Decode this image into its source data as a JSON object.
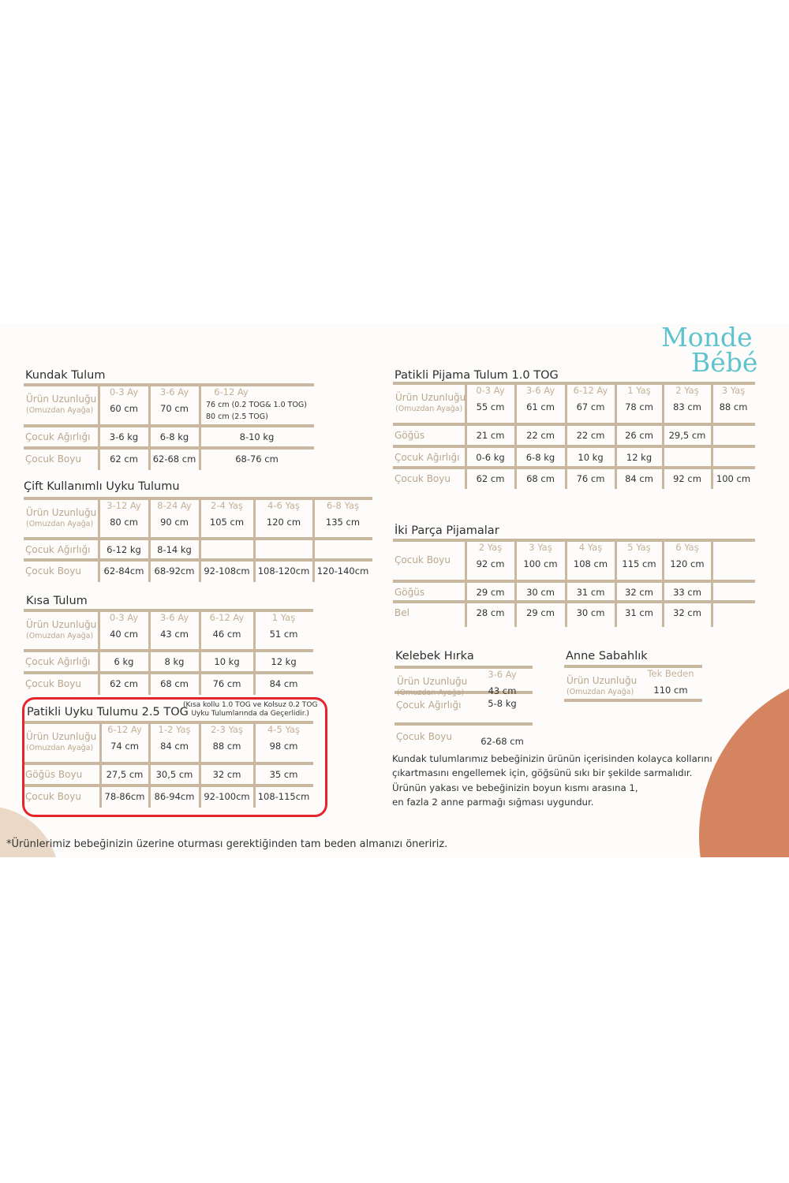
{
  "brand": {
    "logo_line1": "Monde",
    "logo_line2": "Bébé",
    "logo_color": "#5ec3cd"
  },
  "colors": {
    "rule": "#c9b79f",
    "label": "#b9a68c",
    "accent_circle": "#d4845f",
    "beige_circle": "#ead9c6",
    "highlight_box": "#e4262c"
  },
  "tables": {
    "kundak": {
      "title": "Kundak Tulum",
      "header_label": "Ürün Uzunluğu",
      "header_sub": "(Omuzdan Ayağa)",
      "ages": [
        "0-3 Ay",
        "3-6 Ay",
        "6-12 Ay"
      ],
      "lengths": [
        "60 cm",
        "70 cm",
        [
          "76 cm (0.2 TOG& 1.0 TOG)",
          "80 cm (2.5 TOG)"
        ]
      ],
      "rows": [
        {
          "label": "Çocuk Ağırlığı",
          "values": [
            "3-6 kg",
            "6-8 kg",
            "8-10 kg"
          ]
        },
        {
          "label": "Çocuk Boyu",
          "values": [
            "62 cm",
            "62-68 cm",
            "68-76 cm"
          ]
        }
      ]
    },
    "cift": {
      "title": "Çift Kullanımlı Uyku Tulumu",
      "header_label": "Ürün Uzunluğu",
      "header_sub": "(Omuzdan Ayağa)",
      "ages": [
        "3-12 Ay",
        "8-24 Ay",
        "2-4 Yaş",
        "4-6 Yaş",
        "6-8 Yaş"
      ],
      "lengths": [
        "80 cm",
        "90 cm",
        "105  cm",
        "120  cm",
        "135 cm"
      ],
      "rows": [
        {
          "label": "Çocuk Ağırlığı",
          "values": [
            "6-12 kg",
            "8-14 kg",
            "",
            "",
            ""
          ]
        },
        {
          "label": "Çocuk Boyu",
          "values": [
            "62-84cm",
            "68-92cm",
            "92-108cm",
            "108-120cm",
            "120-140cm"
          ]
        }
      ]
    },
    "kisa": {
      "title": "Kısa Tulum",
      "header_label": "Ürün Uzunluğu",
      "header_sub": "(Omuzdan Ayağa)",
      "ages": [
        "0-3 Ay",
        "3-6 Ay",
        "6-12 Ay",
        "1 Yaş"
      ],
      "lengths": [
        "40 cm",
        "43 cm",
        "46 cm",
        "51 cm"
      ],
      "rows": [
        {
          "label": "Çocuk Ağırlığı",
          "values": [
            "6 kg",
            "8 kg",
            "10 kg",
            "12 kg"
          ]
        },
        {
          "label": "Çocuk Boyu",
          "values": [
            "62 cm",
            "68 cm",
            "76 cm",
            "84 cm"
          ]
        }
      ]
    },
    "patikli_uyku": {
      "title": "Patikli Uyku Tulumu 2.5 TOG",
      "note_line1": "(Kısa kollu 1.0 TOG ve Kolsuz 0.2 TOG",
      "note_line2": "Uyku Tulumlarında da Geçerlidir.)",
      "header_label": "Ürün Uzunluğu",
      "header_sub": "(Omuzdan Ayağa)",
      "ages": [
        "6-12 Ay",
        "1-2 Yaş",
        "2-3 Yaş",
        "4-5 Yaş"
      ],
      "lengths": [
        "74 cm",
        "84 cm",
        "88 cm",
        "98 cm"
      ],
      "rows": [
        {
          "label": "Göğüs Boyu",
          "values": [
            "27,5 cm",
            "30,5 cm",
            "32 cm",
            "35 cm"
          ]
        },
        {
          "label": "Çocuk Boyu",
          "values": [
            "78-86cm",
            "86-94cm",
            "92-100cm",
            "108-115cm"
          ]
        }
      ]
    },
    "patikli_pijama": {
      "title": "Patikli Pijama Tulum 1.0 TOG",
      "header_label": "Ürün Uzunluğu",
      "header_sub": "(Omuzdan Ayağa)",
      "ages": [
        "0-3 Ay",
        "3-6 Ay",
        "6-12 Ay",
        "1 Yaş",
        "2 Yaş",
        "3 Yaş"
      ],
      "lengths": [
        "55 cm",
        "61 cm",
        "67 cm",
        "78 cm",
        "83 cm",
        "88 cm"
      ],
      "rows": [
        {
          "label": "Göğüs",
          "values": [
            "21 cm",
            "22 cm",
            "22 cm",
            "26 cm",
            "29,5 cm",
            ""
          ]
        },
        {
          "label": "Çocuk Ağırlığı",
          "values": [
            "0-6 kg",
            "6-8 kg",
            "10 kg",
            "12 kg",
            "",
            ""
          ]
        },
        {
          "label": "Çocuk Boyu",
          "values": [
            "62 cm",
            "68 cm",
            "76 cm",
            "84 cm",
            "92 cm",
            "100 cm"
          ]
        }
      ]
    },
    "iki_parca": {
      "title": "İki Parça Pijamalar",
      "header_label": "Çocuk Boyu",
      "header_sub": "",
      "ages": [
        "2 Yaş",
        "3 Yaş",
        "4 Yaş",
        "5 Yaş",
        "6 Yaş"
      ],
      "lengths": [
        "92 cm",
        "100 cm",
        "108 cm",
        "115 cm",
        "120 cm"
      ],
      "rows": [
        {
          "label": "Göğüs",
          "values": [
            "29 cm",
            "30 cm",
            "31 cm",
            "32 cm",
            "33 cm"
          ]
        },
        {
          "label": "Bel",
          "values": [
            "28 cm",
            "29 cm",
            "30 cm",
            "31 cm",
            "32 cm"
          ]
        }
      ]
    },
    "kelebek": {
      "title": "Kelebek Hırka",
      "header_label": "Ürün Uzunluğu",
      "header_sub": "(Omuzdan Ayağa)",
      "ages": [
        "3-6 Ay"
      ],
      "lengths": [
        "43 cm"
      ],
      "rows": [
        {
          "label": "Çocuk Ağırlığı",
          "values": [
            "5-8 kg"
          ]
        },
        {
          "label": "Çocuk Boyu",
          "values": [
            "62-68 cm"
          ]
        }
      ]
    },
    "anne": {
      "title": "Anne Sabahlık",
      "header_label": "Ürün Uzunluğu",
      "header_sub": "(Omuzdan Ayağa)",
      "ages": [
        "Tek Beden"
      ],
      "lengths": [
        "110 cm"
      ],
      "rows": []
    }
  },
  "notes": {
    "note1_line1": "Kundak tulumlarımız bebeğinizin ürünün içerisinden kolayca kollarını",
    "note1_line2": "çıkartmasını engellemek için, göğsünü sıkı bir şekilde sarmalıdır.",
    "note2_line1": "Ürünün yakası ve bebeğinizin boyun kısmı arasına 1,",
    "note2_line2": "en fazla 2 anne parmağı sığması uygundur.",
    "footnote": "*Ürünlerimiz bebeğinizin üzerine oturması gerektiğinden tam beden almanızı öneririz."
  }
}
